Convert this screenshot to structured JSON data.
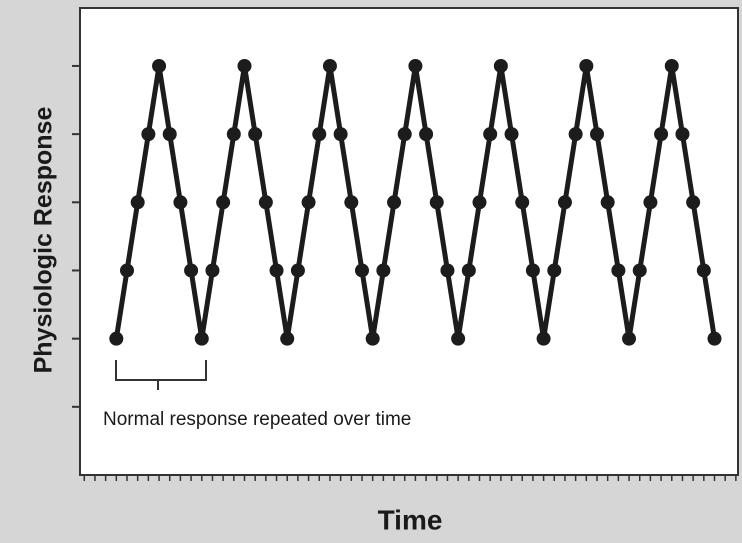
{
  "chart_data": {
    "type": "line",
    "x_label": "Time",
    "y_label": "Physiologic Response",
    "annotation": "Normal response repeated over time",
    "x": [
      0,
      1,
      2,
      3,
      4,
      5,
      6,
      7,
      8,
      9,
      10,
      11,
      12,
      13,
      14,
      15,
      16,
      17,
      18,
      19,
      20,
      21,
      22,
      23,
      24,
      25,
      26,
      27,
      28,
      29,
      30,
      31,
      32,
      33,
      34,
      35,
      36,
      37,
      38,
      39,
      40,
      41,
      42,
      43,
      44,
      45,
      46,
      47,
      48,
      49,
      50,
      51,
      52,
      53,
      54,
      55,
      56
    ],
    "series": [
      {
        "color": "#1c1c1c",
        "values": [
          1,
          2,
          3,
          4,
          5,
          4,
          3,
          2,
          1,
          2,
          3,
          4,
          5,
          4,
          3,
          2,
          1,
          2,
          3,
          4,
          5,
          4,
          3,
          2,
          1,
          2,
          3,
          4,
          5,
          4,
          3,
          2,
          1,
          2,
          3,
          4,
          5,
          4,
          3,
          2,
          1,
          2,
          3,
          4,
          5,
          4,
          3,
          2,
          1,
          2,
          3,
          4,
          5,
          4,
          3,
          2,
          1
        ]
      }
    ],
    "xlim": [
      -3.4,
      58.2
    ],
    "ylim": [
      -1,
      5.85
    ],
    "xticks": [
      -3,
      -2,
      -1,
      0,
      1,
      2,
      3,
      4,
      5,
      6,
      7,
      8,
      9,
      10,
      11,
      12,
      13,
      14,
      15,
      16,
      17,
      18,
      19,
      20,
      21,
      22,
      23,
      24,
      25,
      26,
      27,
      28,
      29,
      30,
      31,
      32,
      33,
      34,
      35,
      36,
      37,
      38,
      39,
      40,
      41,
      42,
      43,
      44,
      45,
      46,
      47,
      48,
      49,
      50,
      51,
      52,
      53,
      54,
      55,
      56,
      57,
      58
    ],
    "yticks": [
      0,
      1,
      2,
      3,
      4,
      5
    ]
  }
}
